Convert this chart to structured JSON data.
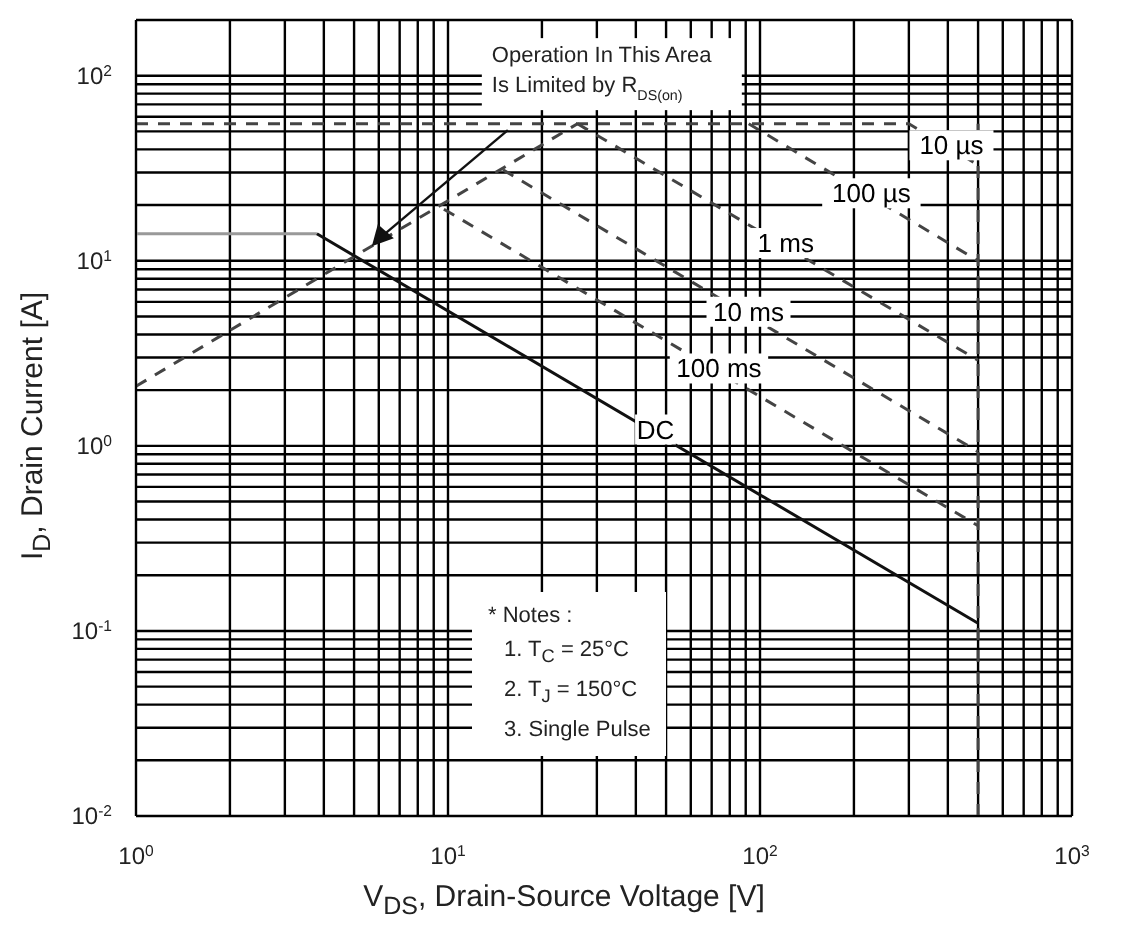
{
  "chart_data": {
    "type": "line",
    "xlabel": "V$_{DS}$, Drain-Source Voltage [V]",
    "ylabel": "I$_{D}$, Drain Current [A]",
    "log": "xy",
    "grid": true,
    "legend": false,
    "marker": "none",
    "xlim": [
      1,
      1000
    ],
    "ylim": [
      0.01,
      200
    ],
    "xticks": [
      {
        "value": 1,
        "label": "10$^{0}$"
      },
      {
        "value": 2,
        "label": null
      },
      {
        "value": 3,
        "label": null
      },
      {
        "value": 4,
        "label": null
      },
      {
        "value": 5,
        "label": null
      },
      {
        "value": 6,
        "label": null
      },
      {
        "value": 7,
        "label": null
      },
      {
        "value": 8,
        "label": null
      },
      {
        "value": 9,
        "label": null
      },
      {
        "value": 10,
        "label": "10$^{1}$"
      },
      {
        "value": 20,
        "label": null
      },
      {
        "value": 30,
        "label": null
      },
      {
        "value": 40,
        "label": null
      },
      {
        "value": 50,
        "label": null
      },
      {
        "value": 60,
        "label": null
      },
      {
        "value": 70,
        "label": null
      },
      {
        "value": 80,
        "label": null
      },
      {
        "value": 90,
        "label": null
      },
      {
        "value": 100,
        "label": "10$^{2}$"
      },
      {
        "value": 200,
        "label": null
      },
      {
        "value": 300,
        "label": null
      },
      {
        "value": 400,
        "label": null
      },
      {
        "value": 500,
        "label": null
      },
      {
        "value": 600,
        "label": null
      },
      {
        "value": 700,
        "label": null
      },
      {
        "value": 800,
        "label": null
      },
      {
        "value": 900,
        "label": null
      },
      {
        "value": 1000,
        "label": "10$^{3}$"
      }
    ],
    "yticks": [
      {
        "value": 0.01,
        "label": "10$^{-2}$"
      },
      {
        "value": 0.02,
        "label": null
      },
      {
        "value": 0.03,
        "label": null
      },
      {
        "value": 0.04,
        "label": null
      },
      {
        "value": 0.05,
        "label": null
      },
      {
        "value": 0.06,
        "label": null
      },
      {
        "value": 0.07,
        "label": null
      },
      {
        "value": 0.08,
        "label": null
      },
      {
        "value": 0.09,
        "label": null
      },
      {
        "value": 0.1,
        "label": "10$^{-1}$"
      },
      {
        "value": 0.2,
        "label": null
      },
      {
        "value": 0.3,
        "label": null
      },
      {
        "value": 0.4,
        "label": null
      },
      {
        "value": 0.5,
        "label": null
      },
      {
        "value": 0.6,
        "label": null
      },
      {
        "value": 0.7,
        "label": null
      },
      {
        "value": 0.8,
        "label": null
      },
      {
        "value": 0.9,
        "label": null
      },
      {
        "value": 1,
        "label": "10$^{0}$"
      },
      {
        "value": 2,
        "label": null
      },
      {
        "value": 3,
        "label": null
      },
      {
        "value": 4,
        "label": null
      },
      {
        "value": 5,
        "label": null
      },
      {
        "value": 6,
        "label": null
      },
      {
        "value": 7,
        "label": null
      },
      {
        "value": 8,
        "label": null
      },
      {
        "value": 9,
        "label": null
      },
      {
        "value": 10,
        "label": "10$^{1}$"
      },
      {
        "value": 20,
        "label": null
      },
      {
        "value": 30,
        "label": null
      },
      {
        "value": 40,
        "label": null
      },
      {
        "value": 50,
        "label": null
      },
      {
        "value": 60,
        "label": null
      },
      {
        "value": 70,
        "label": null
      },
      {
        "value": 80,
        "label": null
      },
      {
        "value": 90,
        "label": null
      },
      {
        "value": 100,
        "label": "10$^{2}$"
      },
      {
        "value": 200,
        "label": null
      }
    ],
    "series": [
      {
        "color": "#444444",
        "line_style": "dashed",
        "x": [
          1,
          26
        ],
        "values": [
          2.1,
          55
        ]
      },
      {
        "name": "10 µs",
        "color": "#444444",
        "line_style": "dashed",
        "x": [
          1,
          300,
          500
        ],
        "values": [
          55,
          55,
          33
        ]
      },
      {
        "name": "100 µs",
        "color": "#444444",
        "line_style": "dashed",
        "x": [
          92,
          500
        ],
        "values": [
          55,
          10
        ]
      },
      {
        "name": "1 ms",
        "color": "#444444",
        "line_style": "dashed",
        "x": [
          26,
          500
        ],
        "values": [
          55,
          2.9
        ]
      },
      {
        "name": "10 ms",
        "color": "#444444",
        "line_style": "dashed",
        "x": [
          15,
          500
        ],
        "values": [
          31,
          0.93
        ]
      },
      {
        "name": "100 ms",
        "color": "#444444",
        "line_style": "dashed",
        "x": [
          9.7,
          500
        ],
        "values": [
          19,
          0.37
        ]
      },
      {
        "color": "#444444",
        "line_style": "dashed",
        "x": [
          500,
          500
        ],
        "values": [
          0.01,
          55
        ]
      },
      {
        "color": "#999999",
        "line_style": "solid",
        "x": [
          1,
          3.8
        ],
        "values": [
          14,
          14
        ]
      },
      {
        "name": "DC",
        "color": "#111111",
        "line_style": "solid",
        "x": [
          3.8,
          500
        ],
        "values": [
          14,
          0.11
        ]
      }
    ],
    "annotations": [
      {
        "text": "Operation In This Area\nIs Limited by R$_{DS(on)}$",
        "x": 5.7,
        "y": 12
      },
      "* Notes :",
      "1. T$_{C}$ = 25°C",
      "2. T$_{J}$ = 150°C",
      "3. Single Pulse"
    ]
  }
}
